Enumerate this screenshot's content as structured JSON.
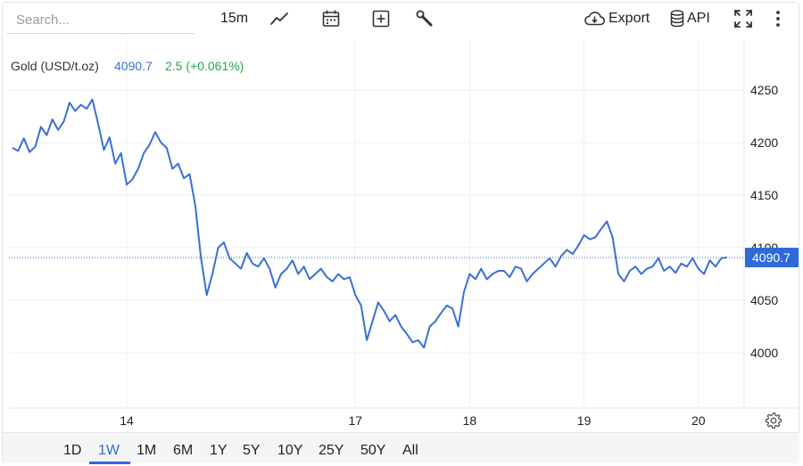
{
  "search": {
    "placeholder": "Search..."
  },
  "toolbar": {
    "interval": "15m",
    "export_label": "Export",
    "api_label": "API",
    "icons": [
      "line-chart-icon",
      "calendar-icon",
      "add-box-icon",
      "wrench-icon",
      "cloud-download-icon",
      "database-icon",
      "fullscreen-icon",
      "more-vert-icon"
    ]
  },
  "legend": {
    "name": "Gold (USD/t.oz)",
    "last": "4090.7",
    "change": "2.5 (+0.061%)"
  },
  "colors": {
    "line": "#3a6fd8",
    "change_positive": "#28a745",
    "last_price_bg": "#2f6ad9",
    "active_range": "#2f6ad9"
  },
  "ranges": {
    "items": [
      "1D",
      "1W",
      "1M",
      "6M",
      "1Y",
      "5Y",
      "10Y",
      "25Y",
      "50Y",
      "All"
    ],
    "active": "1W"
  },
  "chart_data": {
    "type": "line",
    "title": "",
    "xlabel": "",
    "ylabel": "",
    "ylim": [
      3990,
      4265
    ],
    "y_ticks": [
      4000,
      4050,
      4100,
      4150,
      4200,
      4250
    ],
    "x_ticks": [
      {
        "label": "14",
        "x": 7.0
      },
      {
        "label": "17",
        "x": 11.0
      },
      {
        "label": "18",
        "x": 13.0
      },
      {
        "label": "19",
        "x": 15.0
      },
      {
        "label": "20",
        "x": 17.0
      }
    ],
    "last_price": 4090.7,
    "last_price_label": "4090.7",
    "grid": true,
    "series": [
      {
        "x": [
          5.0,
          5.1,
          5.2,
          5.3,
          5.4,
          5.5,
          5.6,
          5.7,
          5.8,
          5.9,
          6.0,
          6.1,
          6.2,
          6.3,
          6.4,
          6.5,
          6.6,
          6.7,
          6.8,
          6.9,
          7.0,
          7.1,
          7.2,
          7.3,
          7.4,
          7.5,
          7.6,
          7.7,
          7.8,
          7.9,
          8.0,
          8.1,
          8.2,
          8.3,
          8.4,
          8.5,
          8.6,
          8.7,
          8.8,
          8.9,
          9.0,
          9.1,
          9.2,
          9.3,
          9.4,
          9.5,
          9.6,
          9.7,
          9.8,
          9.9,
          10.0,
          10.1,
          10.2,
          10.3,
          10.4,
          10.5,
          10.6,
          10.7,
          10.8,
          10.9,
          11.0,
          11.1,
          11.2,
          11.3,
          11.4,
          11.5,
          11.6,
          11.7,
          11.8,
          11.9,
          12.0,
          12.1,
          12.2,
          12.3,
          12.4,
          12.5,
          12.6,
          12.7,
          12.8,
          12.9,
          13.0,
          13.1,
          13.2,
          13.3,
          13.4,
          13.5,
          13.6,
          13.7,
          13.8,
          13.9,
          14.0,
          14.1,
          14.2,
          14.3,
          14.4,
          14.5,
          14.6,
          14.7,
          14.8,
          14.9,
          15.0,
          15.1,
          15.2,
          15.3,
          15.4,
          15.5,
          15.6,
          15.7,
          15.8,
          15.9,
          16.0,
          16.1,
          16.2,
          16.3,
          16.4,
          16.5,
          16.6,
          16.7,
          16.8,
          16.9,
          17.0,
          17.1,
          17.2,
          17.3,
          17.4,
          17.5
        ],
        "values": [
          4195,
          4192,
          4204,
          4191,
          4196,
          4215,
          4207,
          4222,
          4212,
          4220,
          4238,
          4230,
          4236,
          4232,
          4241,
          4218,
          4193,
          4205,
          4180,
          4190,
          4160,
          4165,
          4175,
          4190,
          4198,
          4210,
          4200,
          4195,
          4175,
          4180,
          4166,
          4170,
          4140,
          4090,
          4055,
          4075,
          4100,
          4105,
          4090,
          4085,
          4080,
          4095,
          4085,
          4082,
          4090,
          4080,
          4062,
          4075,
          4080,
          4088,
          4075,
          4082,
          4070,
          4075,
          4080,
          4072,
          4068,
          4075,
          4070,
          4072,
          4055,
          4045,
          4012,
          4030,
          4048,
          4040,
          4030,
          4036,
          4025,
          4018,
          4010,
          4012,
          4005,
          4025,
          4030,
          4038,
          4045,
          4042,
          4025,
          4058,
          4075,
          4070,
          4080,
          4070,
          4075,
          4078,
          4078,
          4072,
          4082,
          4080,
          4068,
          4075,
          4080,
          4085,
          4090,
          4082,
          4092,
          4098,
          4094,
          4102,
          4112,
          4108,
          4110,
          4118,
          4125,
          4110,
          4075,
          4068,
          4078,
          4082,
          4075,
          4080,
          4082,
          4090,
          4078,
          4082,
          4076,
          4085,
          4082,
          4090,
          4080,
          4075,
          4088,
          4082,
          4090,
          4090.7
        ]
      }
    ]
  }
}
